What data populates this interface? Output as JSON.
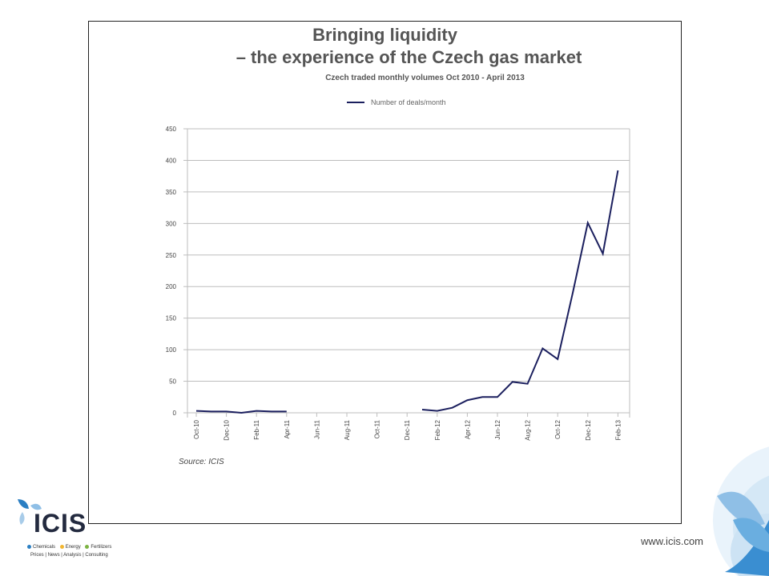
{
  "slide": {
    "title_line1": "Bringing liquidity",
    "title_line2": "– the experience of the Czech gas market",
    "subtitle": "Czech traded monthly volumes Oct 2010 - April 2013",
    "source": "Source: ICIS",
    "url": "www.icis.com"
  },
  "logo": {
    "name": "ICIS",
    "tagline_items": [
      "Chemicals",
      "Energy",
      "Fertilizers"
    ],
    "tagline_colors": [
      "#2b7fc3",
      "#f2b630",
      "#7cb342"
    ],
    "tagline2": "Prices | News | Analysis | Consulting"
  },
  "chart_data": {
    "type": "line",
    "ylim": [
      0,
      450
    ],
    "yticks": [
      0,
      50,
      100,
      150,
      200,
      250,
      300,
      350,
      400,
      450
    ],
    "x": [
      "Oct-10",
      "Nov-10",
      "Dec-10",
      "Jan-11",
      "Feb-11",
      "Mar-11",
      "Apr-11",
      "May-11",
      "Jun-11",
      "Jul-11",
      "Aug-11",
      "Sep-11",
      "Oct-11",
      "Nov-11",
      "Dec-11",
      "Jan-12",
      "Feb-12",
      "Mar-12",
      "Apr-12",
      "May-12",
      "Jun-12",
      "Jul-12",
      "Aug-12",
      "Sep-12",
      "Oct-12",
      "Nov-12",
      "Dec-12",
      "Jan-13",
      "Feb-13"
    ],
    "xtick_labels": [
      "Oct-10",
      "Dec-10",
      "Feb-11",
      "Apr-11",
      "Jun-11",
      "Aug-11",
      "Oct-11",
      "Dec-11",
      "Feb-12",
      "Apr-12",
      "Jun-12",
      "Aug-12",
      "Oct-12",
      "Dec-12",
      "Feb-13"
    ],
    "series": [
      {
        "name": "Number of deals/month",
        "color": "#1b1f5e",
        "values": [
          3,
          2,
          2,
          0,
          3,
          2,
          2,
          null,
          null,
          null,
          null,
          null,
          null,
          null,
          null,
          5,
          3,
          8,
          20,
          25,
          25,
          49,
          46,
          102,
          85,
          190,
          301,
          252,
          384
        ]
      }
    ],
    "grid": true,
    "legend": "top-center"
  }
}
